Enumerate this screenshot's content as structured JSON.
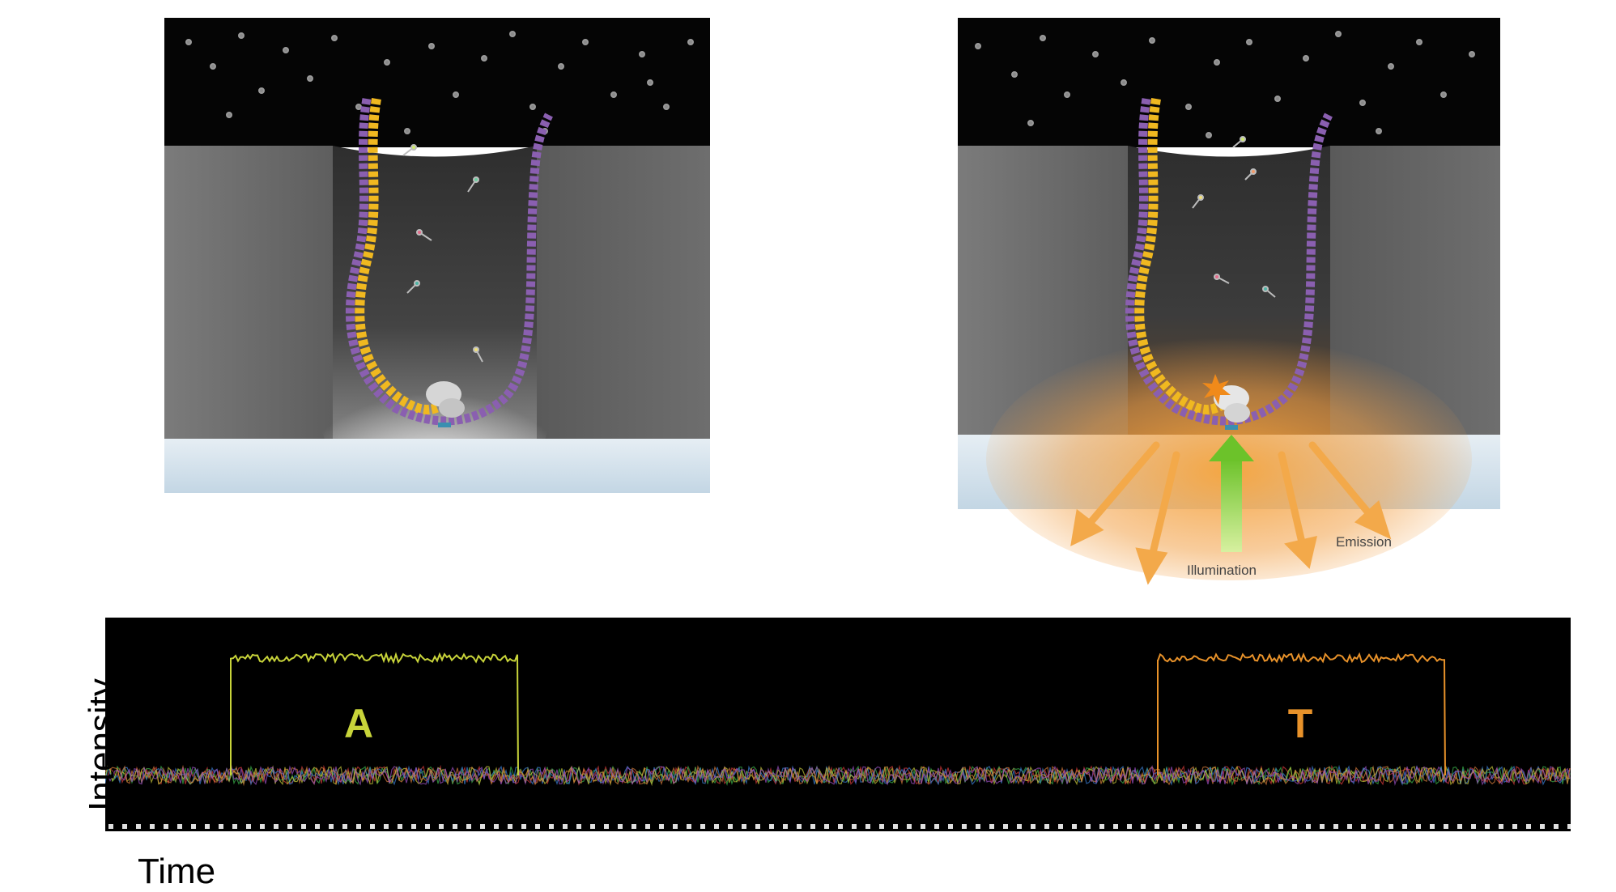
{
  "left_panel": {},
  "right_panel": {
    "illumination_label": "Illumination",
    "emission_label": "Emission"
  },
  "trace": {
    "pulse_labels": [
      "A",
      "T"
    ],
    "pulse_colors": [
      "#c8d43a",
      "#e8922a"
    ],
    "background_color": "#000000"
  },
  "axes": {
    "y_label": "Intensity",
    "x_label": "Time"
  },
  "colors": {
    "template_strand": "#8a5fb0",
    "nascent_strand": "#f0b820",
    "well_wall": "#6a6a6a",
    "substrate": "#d2e0ea",
    "emission_orange": "#f3a94a",
    "illumination_green": "#7ec832"
  }
}
